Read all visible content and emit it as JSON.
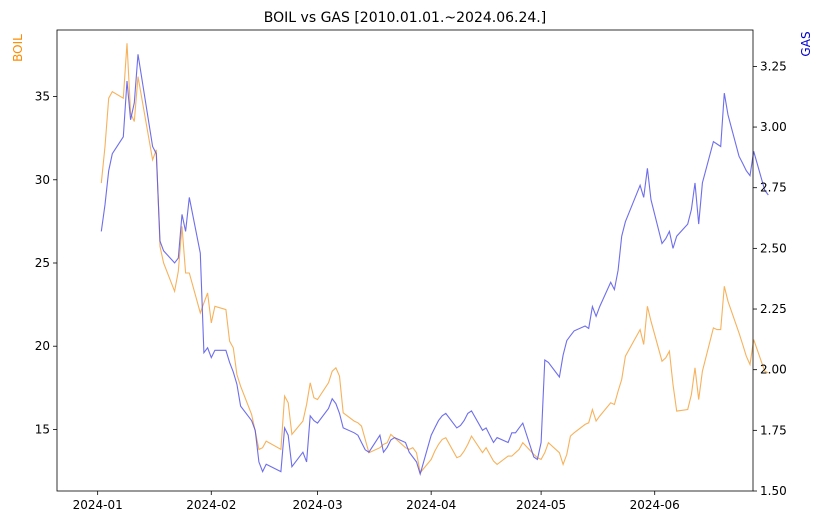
{
  "chart_data": {
    "type": "line",
    "title": "BOIL vs GAS [2010.01.01.~2024.06.24.]",
    "grid": false,
    "x_ticks": [
      "2024-01",
      "2024-02",
      "2024-03",
      "2024-04",
      "2024-05",
      "2024-06"
    ],
    "xlim": [
      "2023-12-28",
      "2024-06-27"
    ],
    "left_axis": {
      "label": "BOIL",
      "color": "#ff8c00",
      "ylim": [
        11.3,
        39.0
      ],
      "ticks": [
        15,
        20,
        25,
        30,
        35
      ]
    },
    "right_axis": {
      "label": "GAS",
      "color": "#0000cd",
      "ylim": [
        1.5,
        3.4
      ],
      "ticks": [
        "1.50",
        "1.75",
        "2.00",
        "2.25",
        "2.50",
        "2.75",
        "3.00",
        "3.25"
      ]
    },
    "series": [
      {
        "name": "BOIL",
        "axis": "left",
        "color": "#f5a540",
        "points": [
          [
            "2024-01-02",
            29.8
          ],
          [
            "2024-01-03",
            32.0
          ],
          [
            "2024-01-04",
            34.9
          ],
          [
            "2024-01-05",
            35.3
          ],
          [
            "2024-01-08",
            34.9
          ],
          [
            "2024-01-09",
            38.2
          ],
          [
            "2024-01-10",
            34.0
          ],
          [
            "2024-01-11",
            33.5
          ],
          [
            "2024-01-12",
            36.2
          ],
          [
            "2024-01-16",
            31.2
          ],
          [
            "2024-01-17",
            31.8
          ],
          [
            "2024-01-18",
            26.0
          ],
          [
            "2024-01-19",
            25.0
          ],
          [
            "2024-01-22",
            23.3
          ],
          [
            "2024-01-23",
            24.5
          ],
          [
            "2024-01-24",
            27.2
          ],
          [
            "2024-01-25",
            24.4
          ],
          [
            "2024-01-26",
            24.4
          ],
          [
            "2024-01-29",
            22.0
          ],
          [
            "2024-01-30",
            22.6
          ],
          [
            "2024-01-31",
            23.2
          ],
          [
            "2024-02-01",
            21.4
          ],
          [
            "2024-02-02",
            22.4
          ],
          [
            "2024-02-05",
            22.2
          ],
          [
            "2024-02-06",
            20.3
          ],
          [
            "2024-02-07",
            19.9
          ],
          [
            "2024-02-08",
            18.3
          ],
          [
            "2024-02-09",
            17.6
          ],
          [
            "2024-02-12",
            15.9
          ],
          [
            "2024-02-13",
            14.9
          ],
          [
            "2024-02-14",
            13.8
          ],
          [
            "2024-02-15",
            13.9
          ],
          [
            "2024-02-16",
            14.3
          ],
          [
            "2024-02-20",
            13.8
          ],
          [
            "2024-02-21",
            17.0
          ],
          [
            "2024-02-22",
            16.6
          ],
          [
            "2024-02-23",
            14.7
          ],
          [
            "2024-02-26",
            15.5
          ],
          [
            "2024-02-27",
            16.5
          ],
          [
            "2024-02-28",
            17.8
          ],
          [
            "2024-02-29",
            16.9
          ],
          [
            "2024-03-01",
            16.8
          ],
          [
            "2024-03-04",
            17.8
          ],
          [
            "2024-03-05",
            18.5
          ],
          [
            "2024-03-06",
            18.7
          ],
          [
            "2024-03-07",
            18.2
          ],
          [
            "2024-03-08",
            16.0
          ],
          [
            "2024-03-11",
            15.5
          ],
          [
            "2024-03-12",
            15.4
          ],
          [
            "2024-03-13",
            15.2
          ],
          [
            "2024-03-14",
            14.4
          ],
          [
            "2024-03-15",
            13.6
          ],
          [
            "2024-03-18",
            13.9
          ],
          [
            "2024-03-19",
            14.1
          ],
          [
            "2024-03-20",
            14.2
          ],
          [
            "2024-03-21",
            14.7
          ],
          [
            "2024-03-22",
            14.5
          ],
          [
            "2024-03-25",
            13.9
          ],
          [
            "2024-03-26",
            13.8
          ],
          [
            "2024-03-27",
            13.9
          ],
          [
            "2024-03-28",
            13.6
          ],
          [
            "2024-03-29",
            12.4
          ],
          [
            "2024-04-01",
            13.2
          ],
          [
            "2024-04-02",
            13.7
          ],
          [
            "2024-04-03",
            14.1
          ],
          [
            "2024-04-04",
            14.4
          ],
          [
            "2024-04-05",
            14.5
          ],
          [
            "2024-04-08",
            13.3
          ],
          [
            "2024-04-09",
            13.4
          ],
          [
            "2024-04-10",
            13.7
          ],
          [
            "2024-04-11",
            14.1
          ],
          [
            "2024-04-12",
            14.6
          ],
          [
            "2024-04-15",
            13.6
          ],
          [
            "2024-04-16",
            13.9
          ],
          [
            "2024-04-17",
            13.5
          ],
          [
            "2024-04-18",
            13.1
          ],
          [
            "2024-04-19",
            12.9
          ],
          [
            "2024-04-22",
            13.4
          ],
          [
            "2024-04-23",
            13.4
          ],
          [
            "2024-04-24",
            13.6
          ],
          [
            "2024-04-25",
            13.8
          ],
          [
            "2024-04-26",
            14.2
          ],
          [
            "2024-04-29",
            13.5
          ],
          [
            "2024-04-30",
            13.3
          ],
          [
            "2024-05-01",
            13.2
          ],
          [
            "2024-05-02",
            13.6
          ],
          [
            "2024-05-03",
            14.2
          ],
          [
            "2024-05-06",
            13.6
          ],
          [
            "2024-05-07",
            12.9
          ],
          [
            "2024-05-08",
            13.5
          ],
          [
            "2024-05-09",
            14.6
          ],
          [
            "2024-05-10",
            14.8
          ],
          [
            "2024-05-13",
            15.3
          ],
          [
            "2024-05-14",
            15.4
          ],
          [
            "2024-05-15",
            16.2
          ],
          [
            "2024-05-16",
            15.5
          ],
          [
            "2024-05-17",
            15.8
          ],
          [
            "2024-05-20",
            16.6
          ],
          [
            "2024-05-21",
            16.5
          ],
          [
            "2024-05-22",
            17.3
          ],
          [
            "2024-05-23",
            18.0
          ],
          [
            "2024-05-24",
            19.4
          ],
          [
            "2024-05-28",
            21.0
          ],
          [
            "2024-05-29",
            20.1
          ],
          [
            "2024-05-30",
            22.4
          ],
          [
            "2024-05-31",
            21.5
          ],
          [
            "2024-06-03",
            19.1
          ],
          [
            "2024-06-04",
            19.3
          ],
          [
            "2024-06-05",
            19.7
          ],
          [
            "2024-06-06",
            17.7
          ],
          [
            "2024-06-07",
            16.1
          ],
          [
            "2024-06-10",
            16.2
          ],
          [
            "2024-06-11",
            17.1
          ],
          [
            "2024-06-12",
            18.7
          ],
          [
            "2024-06-13",
            16.8
          ],
          [
            "2024-06-14",
            18.5
          ],
          [
            "2024-06-17",
            21.1
          ],
          [
            "2024-06-18",
            21.0
          ],
          [
            "2024-06-19",
            21.0
          ],
          [
            "2024-06-20",
            23.6
          ],
          [
            "2024-06-21",
            22.7
          ],
          [
            "2024-06-24",
            20.8
          ],
          [
            "2024-06-25",
            20.1
          ],
          [
            "2024-06-26",
            19.4
          ],
          [
            "2024-06-27",
            18.9
          ],
          [
            "2024-06-28",
            20.4
          ],
          [
            "2024-07-01",
            18.5
          ],
          [
            "2024-07-02",
            18.4
          ]
        ]
      },
      {
        "name": "GAS",
        "axis": "right",
        "color": "#5555e8",
        "points": [
          [
            "2024-01-02",
            2.57
          ],
          [
            "2024-01-03",
            2.68
          ],
          [
            "2024-01-04",
            2.82
          ],
          [
            "2024-01-05",
            2.89
          ],
          [
            "2024-01-08",
            2.96
          ],
          [
            "2024-01-09",
            3.19
          ],
          [
            "2024-01-10",
            3.03
          ],
          [
            "2024-01-11",
            3.1
          ],
          [
            "2024-01-12",
            3.3
          ],
          [
            "2024-01-16",
            2.92
          ],
          [
            "2024-01-17",
            2.89
          ],
          [
            "2024-01-18",
            2.53
          ],
          [
            "2024-01-19",
            2.49
          ],
          [
            "2024-01-22",
            2.44
          ],
          [
            "2024-01-23",
            2.46
          ],
          [
            "2024-01-24",
            2.64
          ],
          [
            "2024-01-25",
            2.57
          ],
          [
            "2024-01-26",
            2.71
          ],
          [
            "2024-01-29",
            2.48
          ],
          [
            "2024-01-30",
            2.07
          ],
          [
            "2024-01-31",
            2.09
          ],
          [
            "2024-02-01",
            2.05
          ],
          [
            "2024-02-02",
            2.08
          ],
          [
            "2024-02-05",
            2.08
          ],
          [
            "2024-02-06",
            2.03
          ],
          [
            "2024-02-07",
            1.99
          ],
          [
            "2024-02-08",
            1.94
          ],
          [
            "2024-02-09",
            1.85
          ],
          [
            "2024-02-12",
            1.79
          ],
          [
            "2024-02-13",
            1.75
          ],
          [
            "2024-02-14",
            1.62
          ],
          [
            "2024-02-15",
            1.58
          ],
          [
            "2024-02-16",
            1.61
          ],
          [
            "2024-02-20",
            1.58
          ],
          [
            "2024-02-21",
            1.76
          ],
          [
            "2024-02-22",
            1.73
          ],
          [
            "2024-02-23",
            1.6
          ],
          [
            "2024-02-26",
            1.66
          ],
          [
            "2024-02-27",
            1.62
          ],
          [
            "2024-02-28",
            1.81
          ],
          [
            "2024-02-29",
            1.79
          ],
          [
            "2024-03-01",
            1.78
          ],
          [
            "2024-03-04",
            1.84
          ],
          [
            "2024-03-05",
            1.88
          ],
          [
            "2024-03-06",
            1.86
          ],
          [
            "2024-03-07",
            1.82
          ],
          [
            "2024-03-08",
            1.76
          ],
          [
            "2024-03-11",
            1.74
          ],
          [
            "2024-03-12",
            1.73
          ],
          [
            "2024-03-13",
            1.7
          ],
          [
            "2024-03-14",
            1.67
          ],
          [
            "2024-03-15",
            1.66
          ],
          [
            "2024-03-18",
            1.73
          ],
          [
            "2024-03-19",
            1.66
          ],
          [
            "2024-03-20",
            1.68
          ],
          [
            "2024-03-21",
            1.71
          ],
          [
            "2024-03-22",
            1.72
          ],
          [
            "2024-03-25",
            1.7
          ],
          [
            "2024-03-26",
            1.66
          ],
          [
            "2024-03-27",
            1.64
          ],
          [
            "2024-03-28",
            1.62
          ],
          [
            "2024-03-29",
            1.57
          ],
          [
            "2024-04-01",
            1.73
          ],
          [
            "2024-04-02",
            1.76
          ],
          [
            "2024-04-03",
            1.79
          ],
          [
            "2024-04-04",
            1.81
          ],
          [
            "2024-04-05",
            1.82
          ],
          [
            "2024-04-08",
            1.76
          ],
          [
            "2024-04-09",
            1.77
          ],
          [
            "2024-04-10",
            1.79
          ],
          [
            "2024-04-11",
            1.82
          ],
          [
            "2024-04-12",
            1.83
          ],
          [
            "2024-04-15",
            1.75
          ],
          [
            "2024-04-16",
            1.76
          ],
          [
            "2024-04-17",
            1.73
          ],
          [
            "2024-04-18",
            1.7
          ],
          [
            "2024-04-19",
            1.72
          ],
          [
            "2024-04-22",
            1.7
          ],
          [
            "2024-04-23",
            1.74
          ],
          [
            "2024-04-24",
            1.74
          ],
          [
            "2024-04-25",
            1.76
          ],
          [
            "2024-04-26",
            1.78
          ],
          [
            "2024-04-29",
            1.64
          ],
          [
            "2024-04-30",
            1.63
          ],
          [
            "2024-05-01",
            1.7
          ],
          [
            "2024-05-02",
            2.04
          ],
          [
            "2024-05-03",
            2.03
          ],
          [
            "2024-05-06",
            1.97
          ],
          [
            "2024-05-07",
            2.06
          ],
          [
            "2024-05-08",
            2.12
          ],
          [
            "2024-05-09",
            2.14
          ],
          [
            "2024-05-10",
            2.16
          ],
          [
            "2024-05-13",
            2.18
          ],
          [
            "2024-05-14",
            2.17
          ],
          [
            "2024-05-15",
            2.26
          ],
          [
            "2024-05-16",
            2.22
          ],
          [
            "2024-05-17",
            2.26
          ],
          [
            "2024-05-20",
            2.36
          ],
          [
            "2024-05-21",
            2.33
          ],
          [
            "2024-05-22",
            2.41
          ],
          [
            "2024-05-23",
            2.55
          ],
          [
            "2024-05-24",
            2.61
          ],
          [
            "2024-05-28",
            2.76
          ],
          [
            "2024-05-29",
            2.71
          ],
          [
            "2024-05-30",
            2.83
          ],
          [
            "2024-05-31",
            2.7
          ],
          [
            "2024-06-03",
            2.52
          ],
          [
            "2024-06-04",
            2.54
          ],
          [
            "2024-06-05",
            2.57
          ],
          [
            "2024-06-06",
            2.5
          ],
          [
            "2024-06-07",
            2.55
          ],
          [
            "2024-06-10",
            2.6
          ],
          [
            "2024-06-11",
            2.66
          ],
          [
            "2024-06-12",
            2.77
          ],
          [
            "2024-06-13",
            2.6
          ],
          [
            "2024-06-14",
            2.77
          ],
          [
            "2024-06-17",
            2.94
          ],
          [
            "2024-06-18",
            2.93
          ],
          [
            "2024-06-19",
            2.92
          ],
          [
            "2024-06-20",
            3.14
          ],
          [
            "2024-06-21",
            3.05
          ],
          [
            "2024-06-24",
            2.88
          ],
          [
            "2024-06-25",
            2.85
          ],
          [
            "2024-06-26",
            2.82
          ],
          [
            "2024-06-27",
            2.8
          ],
          [
            "2024-06-28",
            2.9
          ],
          [
            "2024-07-01",
            2.74
          ],
          [
            "2024-07-02",
            2.72
          ]
        ]
      }
    ]
  }
}
